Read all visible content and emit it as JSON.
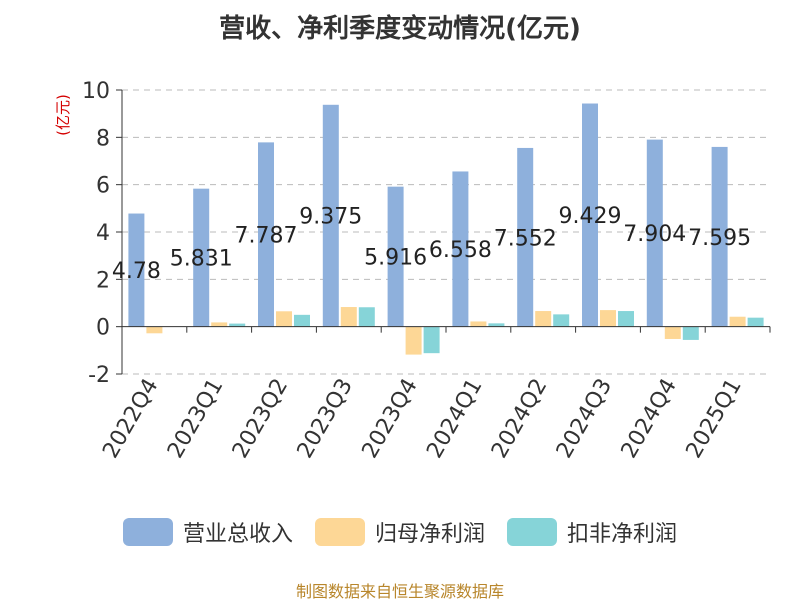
{
  "title": "营收、净利季度变动情况(亿元)",
  "source": "制图数据来自恒生聚源数据库",
  "chart_data": {
    "type": "bar",
    "ylabel": "(亿元)",
    "ylim": [
      -2,
      10
    ],
    "yticks": [
      -2,
      0,
      2,
      4,
      6,
      8,
      10
    ],
    "grid": true,
    "legend_position": "bottom",
    "categories": [
      "2022Q4",
      "2023Q1",
      "2023Q2",
      "2023Q3",
      "2023Q4",
      "2024Q1",
      "2024Q2",
      "2024Q3",
      "2024Q4",
      "2025Q1"
    ],
    "series": [
      {
        "name": "营业总收入",
        "color": "#8eb0dc",
        "values": [
          4.78,
          5.831,
          7.787,
          9.375,
          5.916,
          6.558,
          7.552,
          9.429,
          7.904,
          7.595
        ],
        "labels": [
          "4.78",
          "5.831",
          "7.787",
          "9.375",
          "5.916",
          "6.558",
          "7.552",
          "9.429",
          "7.904",
          "7.595"
        ]
      },
      {
        "name": "归母净利润",
        "color": "#fdd796",
        "values": [
          -0.28,
          0.18,
          0.65,
          0.83,
          -1.18,
          0.22,
          0.66,
          0.7,
          -0.52,
          0.42
        ]
      },
      {
        "name": "扣非净利润",
        "color": "#86d4d8",
        "values": [
          0.0,
          0.13,
          0.5,
          0.82,
          -1.12,
          0.14,
          0.52,
          0.66,
          -0.56,
          0.38
        ]
      }
    ]
  }
}
